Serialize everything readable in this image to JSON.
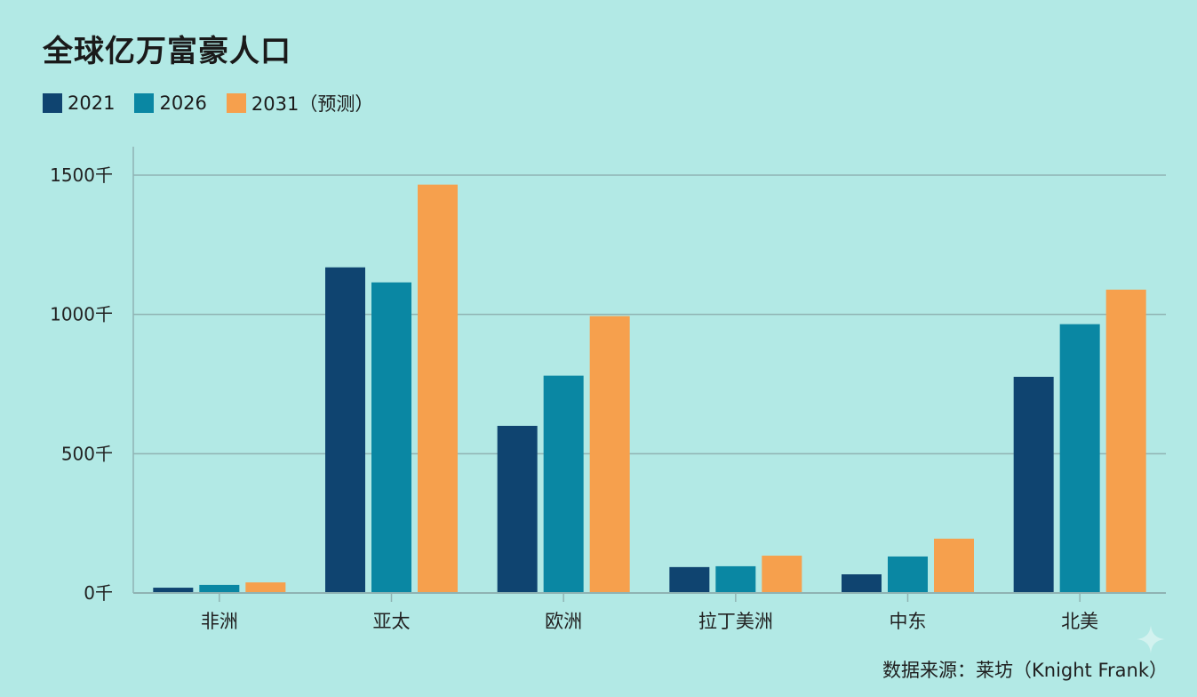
{
  "chart_data": {
    "type": "bar",
    "title": "全球亿万富豪人口",
    "categories": [
      "非洲",
      "亚太",
      "欧洲",
      "拉丁美洲",
      "中东",
      "北美"
    ],
    "series": [
      {
        "name": "2021",
        "color": "#0f4470",
        "values": [
          19,
          1169,
          600,
          93,
          67,
          776
        ]
      },
      {
        "name": "2026",
        "color": "#0a87a3",
        "values": [
          29,
          1115,
          780,
          96,
          131,
          965
        ]
      },
      {
        "name": "2031（预测）",
        "color": "#f6a04d",
        "values": [
          38,
          1466,
          994,
          134,
          195,
          1089
        ]
      }
    ],
    "yticks": [
      0,
      500,
      1000,
      1500
    ],
    "ytick_labels": [
      "0千",
      "500千",
      "1000千",
      "1500千"
    ],
    "ylim": [
      0,
      1500
    ],
    "grid": true,
    "legend": "top-left",
    "xlabel": "",
    "ylabel": ""
  },
  "source": "数据来源：莱坊（Knight Frank）",
  "sparkle_icon": "sparkle-icon"
}
